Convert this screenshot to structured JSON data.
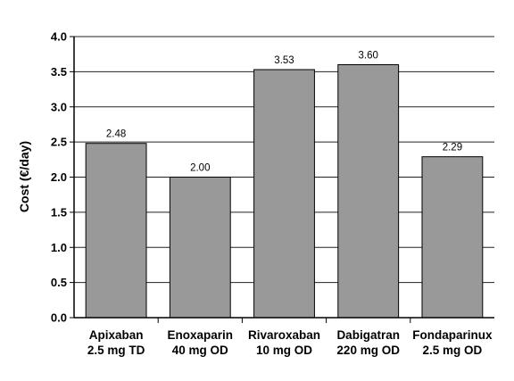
{
  "chart_data": {
    "type": "bar",
    "categories": [
      [
        "Apixaban",
        "2.5 mg TD"
      ],
      [
        "Enoxaparin",
        "40 mg OD"
      ],
      [
        "Rivaroxaban",
        "10 mg OD"
      ],
      [
        "Dabigatran",
        "220 mg OD"
      ],
      [
        "Fondaparinux",
        "2.5 mg OD"
      ]
    ],
    "values": [
      2.48,
      2.0,
      3.53,
      3.6,
      2.29
    ],
    "value_labels": [
      "2.48",
      "2.00",
      "3.53",
      "3.60",
      "2.29"
    ],
    "ylabel": "Cost (€/day)",
    "ylim": [
      0,
      4.0
    ],
    "yticks": [
      "0.0",
      "0.5",
      "1.0",
      "1.5",
      "2.0",
      "2.5",
      "3.0",
      "3.5",
      "4.0"
    ],
    "grid": true,
    "bar_color": "#999999"
  }
}
